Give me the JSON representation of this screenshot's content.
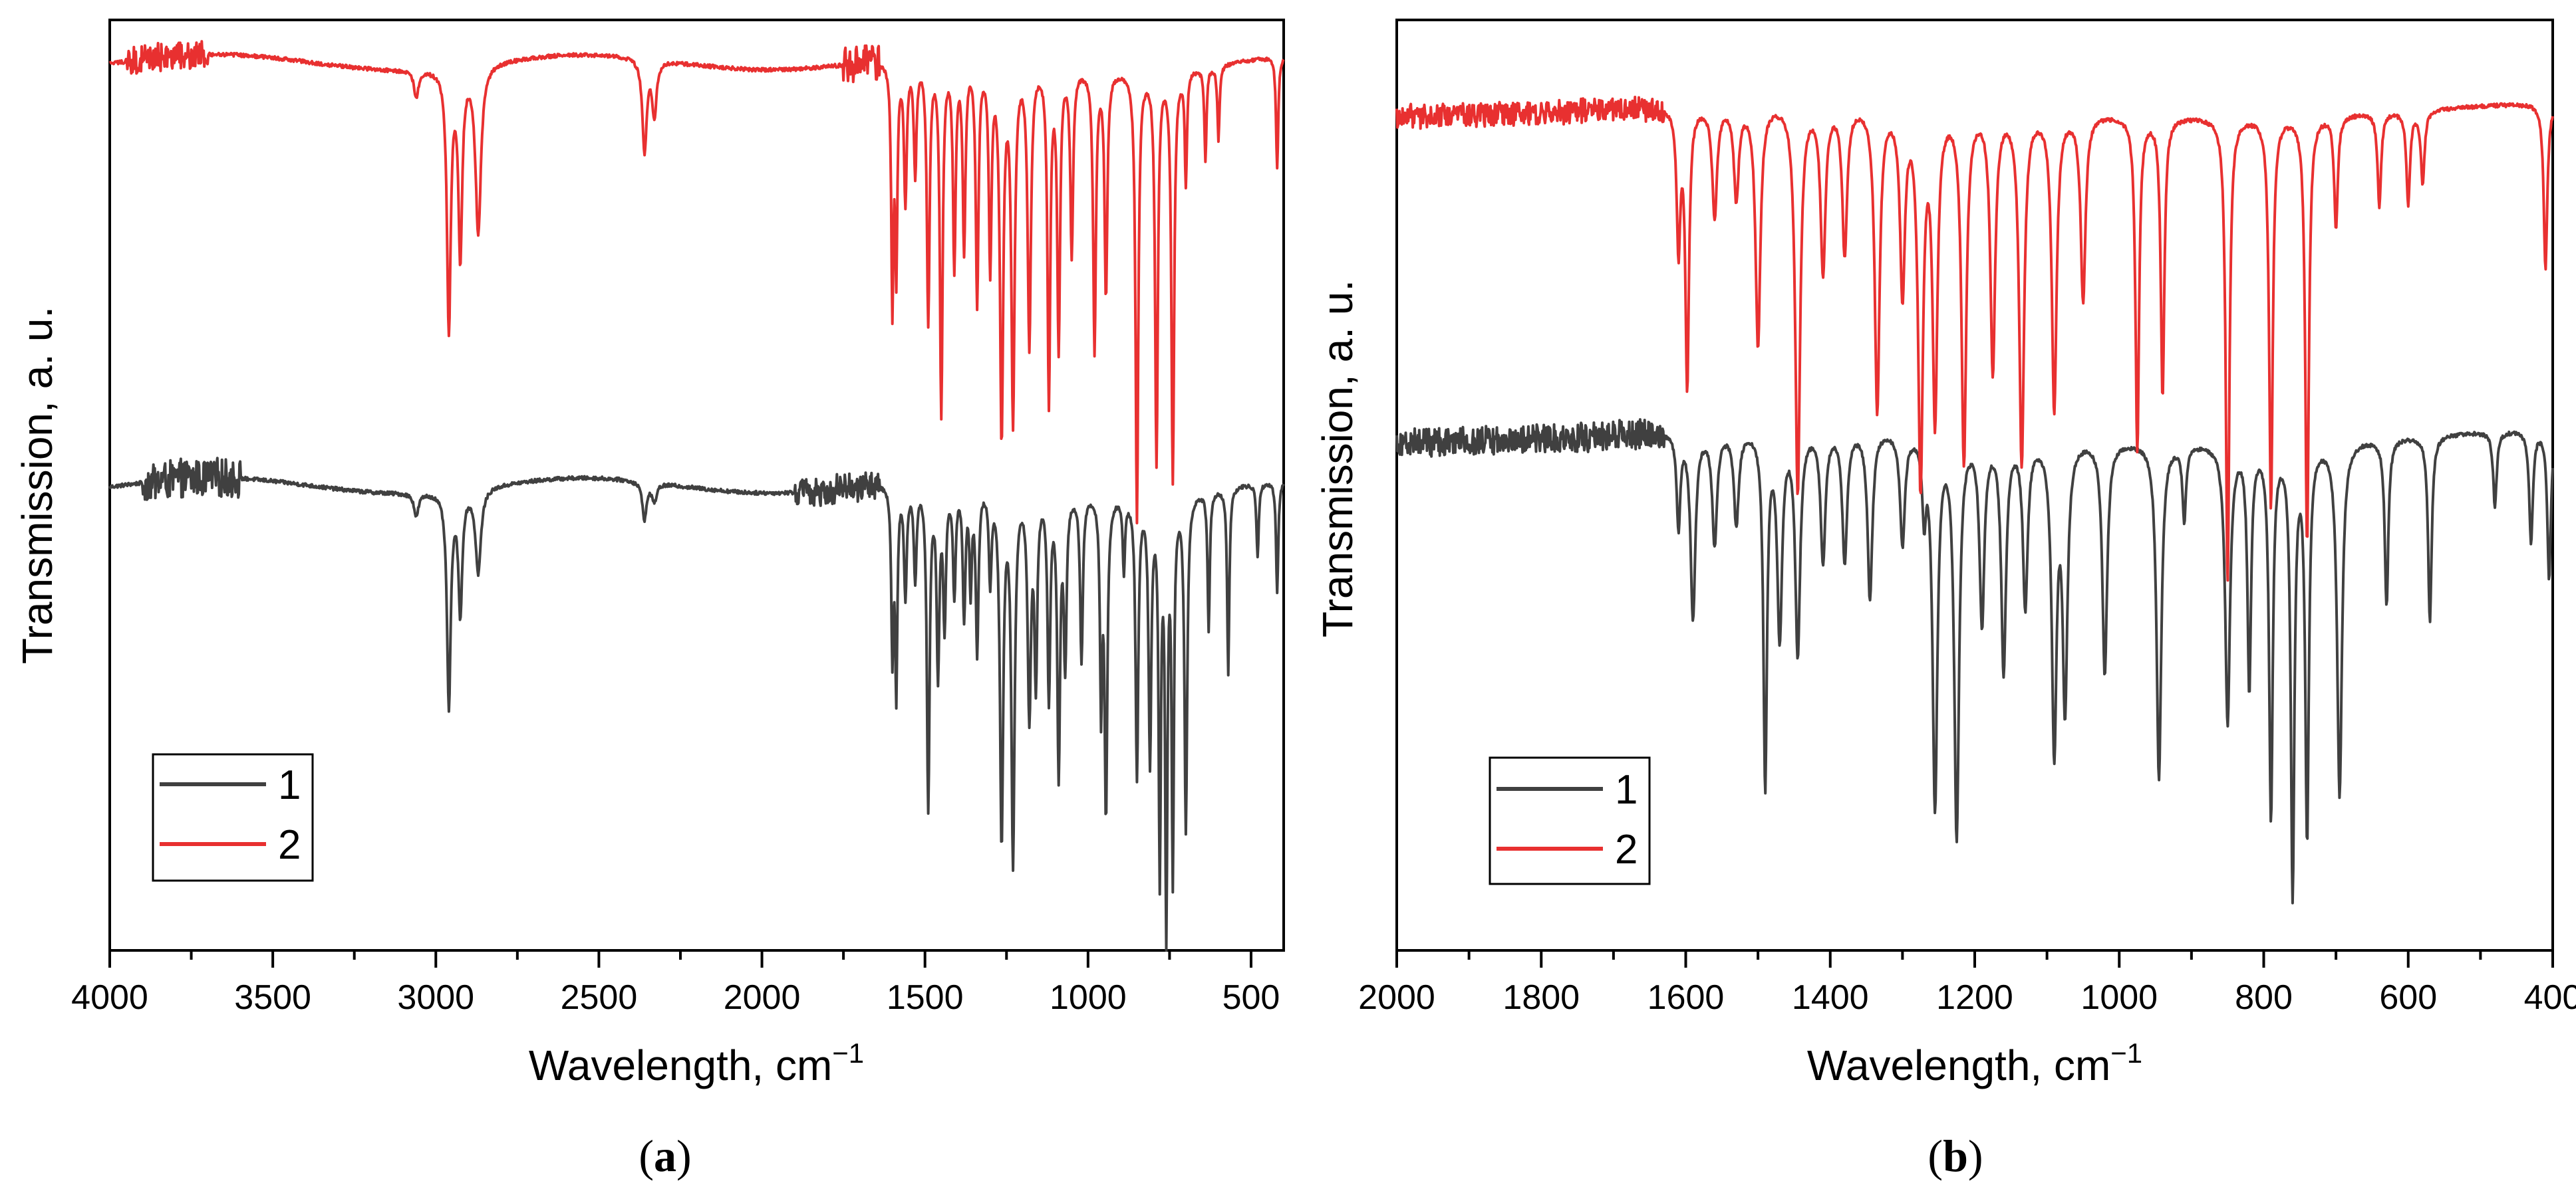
{
  "chart_data": [
    {
      "type": "line",
      "panel_label": "a",
      "xlabel": "Wavelength, cm",
      "xlabel_superscript": "−1",
      "ylabel": "Transmission, a. u.",
      "xlim": [
        4000,
        400
      ],
      "ylim": [
        0,
        1
      ],
      "x_ticks": [
        4000,
        3500,
        3000,
        2500,
        2000,
        1500,
        1000,
        500
      ],
      "y_ticks_shown": false,
      "grid": false,
      "legend_position": "bottom-left",
      "series": [
        {
          "name": "1",
          "color": "#404040",
          "baseline": 0.5,
          "noise_regions": [
            [
              3900,
              3600,
              0.02
            ],
            [
              1900,
              1640,
              0.015
            ]
          ],
          "peaks": [
            [
              3060,
              0.025,
              8
            ],
            [
              2960,
              0.23,
              7
            ],
            [
              2925,
              0.13,
              7
            ],
            [
              2870,
              0.09,
              10
            ],
            [
              2360,
              0.04,
              8
            ],
            [
              2330,
              0.02,
              8
            ],
            [
              1600,
              0.18,
              4
            ],
            [
              1588,
              0.22,
              4
            ],
            [
              1560,
              0.12,
              5
            ],
            [
              1530,
              0.1,
              5
            ],
            [
              1490,
              0.35,
              5
            ],
            [
              1460,
              0.2,
              5
            ],
            [
              1440,
              0.15,
              5
            ],
            [
              1410,
              0.12,
              5
            ],
            [
              1380,
              0.14,
              5
            ],
            [
              1360,
              0.11,
              4
            ],
            [
              1340,
              0.18,
              5
            ],
            [
              1300,
              0.1,
              5
            ],
            [
              1265,
              0.38,
              6
            ],
            [
              1230,
              0.4,
              6
            ],
            [
              1180,
              0.24,
              6
            ],
            [
              1160,
              0.2,
              5
            ],
            [
              1120,
              0.22,
              5
            ],
            [
              1090,
              0.3,
              5
            ],
            [
              1070,
              0.18,
              5
            ],
            [
              1020,
              0.18,
              5
            ],
            [
              960,
              0.22,
              4
            ],
            [
              945,
              0.34,
              5
            ],
            [
              890,
              0.08,
              4
            ],
            [
              850,
              0.3,
              5
            ],
            [
              810,
              0.28,
              5
            ],
            [
              780,
              0.4,
              4
            ],
            [
              760,
              0.46,
              4
            ],
            [
              740,
              0.4,
              4
            ],
            [
              700,
              0.36,
              5
            ],
            [
              630,
              0.15,
              4
            ],
            [
              570,
              0.2,
              4
            ],
            [
              480,
              0.08,
              4
            ],
            [
              420,
              0.12,
              4
            ]
          ]
        },
        {
          "name": "2",
          "color": "#e83030",
          "baseline": 0.955,
          "noise_regions": [
            [
              3950,
              3700,
              0.015
            ],
            [
              1750,
              1640,
              0.02
            ]
          ],
          "peaks": [
            [
              3060,
              0.03,
              8
            ],
            [
              2960,
              0.28,
              7
            ],
            [
              2925,
              0.2,
              7
            ],
            [
              2870,
              0.18,
              10
            ],
            [
              2360,
              0.1,
              8
            ],
            [
              2330,
              0.06,
              8
            ],
            [
              1600,
              0.26,
              4
            ],
            [
              1588,
              0.22,
              4
            ],
            [
              1560,
              0.15,
              5
            ],
            [
              1530,
              0.12,
              5
            ],
            [
              1490,
              0.28,
              5
            ],
            [
              1450,
              0.38,
              5
            ],
            [
              1410,
              0.22,
              5
            ],
            [
              1380,
              0.2,
              5
            ],
            [
              1340,
              0.26,
              5
            ],
            [
              1300,
              0.22,
              5
            ],
            [
              1265,
              0.4,
              6
            ],
            [
              1230,
              0.38,
              6
            ],
            [
              1180,
              0.3,
              6
            ],
            [
              1120,
              0.36,
              5
            ],
            [
              1090,
              0.3,
              5
            ],
            [
              1050,
              0.2,
              5
            ],
            [
              980,
              0.3,
              5
            ],
            [
              945,
              0.24,
              5
            ],
            [
              850,
              0.48,
              5
            ],
            [
              790,
              0.42,
              5
            ],
            [
              740,
              0.44,
              5
            ],
            [
              700,
              0.12,
              4
            ],
            [
              640,
              0.1,
              4
            ],
            [
              600,
              0.08,
              4
            ],
            [
              420,
              0.12,
              4
            ]
          ]
        }
      ]
    },
    {
      "type": "line",
      "panel_label": "b",
      "xlabel": "Wavelength, cm",
      "xlabel_superscript": "−1",
      "ylabel": "Transmission, a. u.",
      "xlim": [
        2000,
        400
      ],
      "ylim": [
        0,
        1
      ],
      "x_ticks": [
        2000,
        1800,
        1600,
        1400,
        1200,
        1000,
        800,
        600,
        400
      ],
      "y_ticks_shown": false,
      "grid": false,
      "legend_position": "bottom-left",
      "series": [
        {
          "name": "1",
          "color": "#404040",
          "baseline": 0.555,
          "noise_regions": [
            [
              2000,
              1630,
              0.015
            ]
          ],
          "peaks": [
            [
              1610,
              0.1,
              3
            ],
            [
              1590,
              0.2,
              4
            ],
            [
              1560,
              0.12,
              4
            ],
            [
              1530,
              0.1,
              4
            ],
            [
              1490,
              0.38,
              3
            ],
            [
              1470,
              0.22,
              4
            ],
            [
              1445,
              0.24,
              4
            ],
            [
              1410,
              0.14,
              4
            ],
            [
              1380,
              0.14,
              4
            ],
            [
              1345,
              0.18,
              4
            ],
            [
              1300,
              0.12,
              4
            ],
            [
              1270,
              0.08,
              3
            ],
            [
              1255,
              0.4,
              4
            ],
            [
              1225,
              0.43,
              4
            ],
            [
              1190,
              0.2,
              4
            ],
            [
              1160,
              0.25,
              4
            ],
            [
              1130,
              0.18,
              4
            ],
            [
              1090,
              0.33,
              4
            ],
            [
              1075,
              0.28,
              4
            ],
            [
              1020,
              0.25,
              4
            ],
            [
              945,
              0.36,
              4
            ],
            [
              910,
              0.08,
              3
            ],
            [
              850,
              0.3,
              4
            ],
            [
              820,
              0.26,
              3
            ],
            [
              790,
              0.4,
              3
            ],
            [
              760,
              0.48,
              3
            ],
            [
              740,
              0.42,
              3
            ],
            [
              695,
              0.38,
              4
            ],
            [
              630,
              0.18,
              3
            ],
            [
              570,
              0.2,
              3
            ],
            [
              480,
              0.08,
              3
            ],
            [
              430,
              0.12,
              3
            ],
            [
              405,
              0.16,
              3
            ]
          ]
        },
        {
          "name": "2",
          "color": "#e83030",
          "baseline": 0.905,
          "noise_regions": [
            [
              2000,
              1630,
              0.012
            ]
          ],
          "peaks": [
            [
              1610,
              0.15,
              3
            ],
            [
              1598,
              0.3,
              3
            ],
            [
              1560,
              0.12,
              4
            ],
            [
              1530,
              0.1,
              4
            ],
            [
              1500,
              0.26,
              4
            ],
            [
              1445,
              0.42,
              4
            ],
            [
              1410,
              0.18,
              4
            ],
            [
              1380,
              0.16,
              4
            ],
            [
              1335,
              0.33,
              4
            ],
            [
              1300,
              0.2,
              4
            ],
            [
              1275,
              0.4,
              4
            ],
            [
              1255,
              0.33,
              4
            ],
            [
              1215,
              0.38,
              4
            ],
            [
              1175,
              0.28,
              4
            ],
            [
              1135,
              0.38,
              4
            ],
            [
              1090,
              0.32,
              4
            ],
            [
              1050,
              0.2,
              4
            ],
            [
              975,
              0.36,
              3
            ],
            [
              940,
              0.3,
              3
            ],
            [
              850,
              0.5,
              3
            ],
            [
              790,
              0.42,
              3
            ],
            [
              740,
              0.46,
              3
            ],
            [
              700,
              0.12,
              3
            ],
            [
              640,
              0.1,
              3
            ],
            [
              600,
              0.1,
              3
            ],
            [
              580,
              0.08,
              3
            ],
            [
              410,
              0.18,
              3
            ]
          ]
        }
      ]
    }
  ]
}
